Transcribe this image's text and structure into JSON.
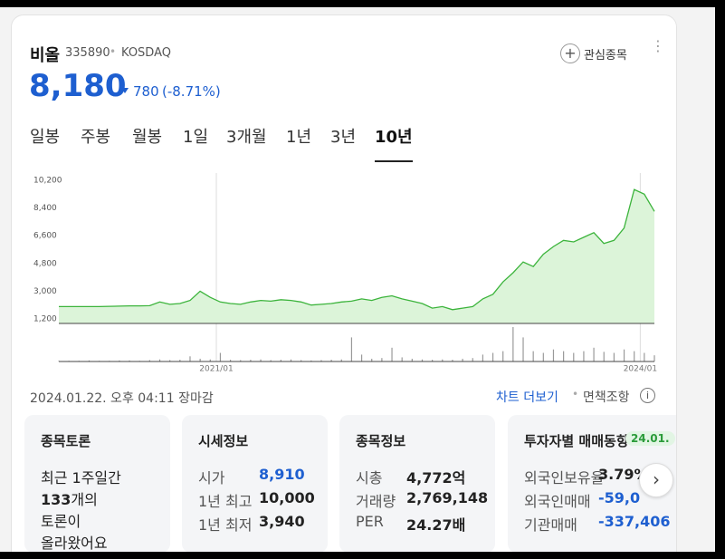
{
  "header": {
    "name": "비올",
    "code": "335890",
    "market": "KOSDAQ",
    "watch": "관심종목"
  },
  "price": {
    "current": "8,180",
    "change": "780",
    "change_rate": "(-8.71%)"
  },
  "tabs": [
    "일봉",
    "주봉",
    "월봉",
    "1일",
    "3개월",
    "1년",
    "3년",
    "10년"
  ],
  "active_tab": 7,
  "chart_data": {
    "type": "area",
    "color": "#3cb43c",
    "fill": "#dcf4d9",
    "ylim": [
      1200,
      10200
    ],
    "yticks": [
      {
        "value": 1200,
        "label": "1,200"
      },
      {
        "value": 3000,
        "label": "3,000"
      },
      {
        "value": 4800,
        "label": "4,800"
      },
      {
        "value": 6600,
        "label": "6,600"
      },
      {
        "value": 8400,
        "label": "8,400"
      },
      {
        "value": 10200,
        "label": "10,200"
      }
    ],
    "xlim": [
      0,
      59
    ],
    "xticks": [
      {
        "value": 15.6,
        "label": "2021/01"
      },
      {
        "value": 57.6,
        "label": "2024/01"
      }
    ],
    "values": [
      2000,
      2000,
      2000,
      2000,
      2000,
      2020,
      2030,
      2050,
      2050,
      2060,
      2300,
      2150,
      2200,
      2400,
      3000,
      2600,
      2300,
      2200,
      2150,
      2300,
      2400,
      2350,
      2450,
      2400,
      2300,
      2100,
      2150,
      2200,
      2300,
      2350,
      2500,
      2400,
      2600,
      2700,
      2500,
      2350,
      2200,
      1900,
      2000,
      1800,
      1900,
      2000,
      2500,
      2800,
      3600,
      4200,
      4900,
      4600,
      5400,
      5900,
      6300,
      6200,
      6500,
      6800,
      6100,
      6300,
      7100,
      9600,
      9300,
      8180
    ],
    "volume": {
      "color": "#9a9a9a",
      "ylim": [
        0,
        100
      ],
      "values": [
        2,
        2,
        2,
        3,
        2,
        2,
        3,
        3,
        2,
        4,
        6,
        4,
        5,
        15,
        8,
        6,
        25,
        5,
        4,
        5,
        6,
        4,
        5,
        6,
        4,
        3,
        4,
        5,
        6,
        70,
        20,
        8,
        10,
        40,
        12,
        8,
        6,
        5,
        6,
        5,
        8,
        10,
        20,
        25,
        30,
        100,
        70,
        30,
        25,
        35,
        30,
        25,
        30,
        40,
        28,
        25,
        35,
        30,
        25,
        18
      ]
    }
  },
  "footer": {
    "timestamp": "2024.01.22. 오후 04:11 장마감",
    "more": "차트 더보기",
    "disclaimer": "면책조항"
  },
  "cards": {
    "discussion": {
      "title": "종목토론",
      "line1": "최근 1주일간",
      "count": "133",
      "count_suffix": "개의",
      "line3": "토론이",
      "line4": "올라왔어요"
    },
    "quote": {
      "title": "시세정보",
      "rows": [
        [
          "시가",
          "8,910"
        ],
        [
          "1년 최고",
          "10,000"
        ],
        [
          "1년 최저",
          "3,940"
        ]
      ]
    },
    "info": {
      "title": "종목정보",
      "rows": [
        [
          "시총",
          "4,772억"
        ],
        [
          "거래량",
          "2,769,148"
        ],
        [
          "PER",
          "24.27배"
        ]
      ]
    },
    "investor": {
      "title": "투자자별 매매동향",
      "badge": "24.01.",
      "rows": [
        [
          "외국인보유율",
          "3.79%"
        ],
        [
          "외국인매매",
          "-59,0"
        ],
        [
          "기관매매",
          "-337,406"
        ]
      ]
    }
  }
}
